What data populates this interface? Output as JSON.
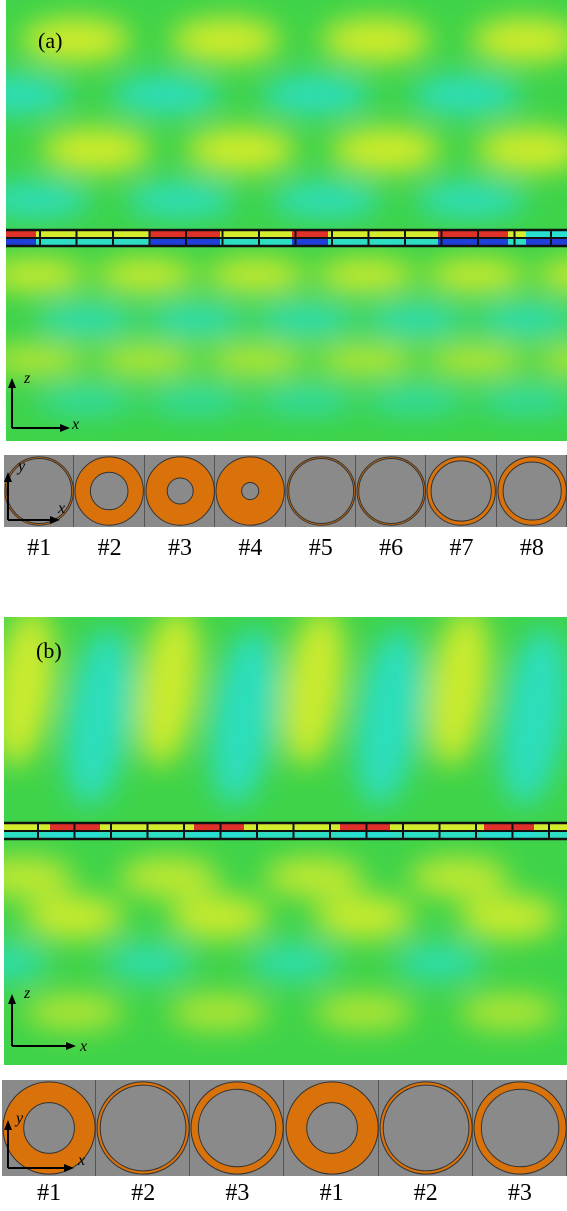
{
  "panels": [
    {
      "label": "(a)",
      "axes": {
        "vertical": "z",
        "horizontal": "x"
      },
      "strip_axes": {
        "vertical": "y",
        "horizontal": "x"
      },
      "cells": [
        {
          "label": "#1",
          "inner_ratio": 0.95
        },
        {
          "label": "#2",
          "inner_ratio": 0.55
        },
        {
          "label": "#3",
          "inner_ratio": 0.38
        },
        {
          "label": "#4",
          "inner_ratio": 0.25
        },
        {
          "label": "#5",
          "inner_ratio": 0.95
        },
        {
          "label": "#6",
          "inner_ratio": 0.95
        },
        {
          "label": "#7",
          "inner_ratio": 0.88
        },
        {
          "label": "#8",
          "inner_ratio": 0.85
        }
      ]
    },
    {
      "label": "(b)",
      "axes": {
        "vertical": "z",
        "horizontal": "x"
      },
      "strip_axes": {
        "vertical": "y",
        "horizontal": "x"
      },
      "cells": [
        {
          "label": "#1",
          "inner_ratio": 0.55
        },
        {
          "label": "#2",
          "inner_ratio": 0.93
        },
        {
          "label": "#3",
          "inner_ratio": 0.84
        },
        {
          "label": "#1",
          "inner_ratio": 0.55
        },
        {
          "label": "#2",
          "inner_ratio": 0.93
        },
        {
          "label": "#3",
          "inner_ratio": 0.84
        }
      ]
    }
  ],
  "colors": {
    "field_base": "#3fd34a",
    "field_high": "#e3ee2a",
    "field_low": "#2bdfd0",
    "hot": "#e0302a",
    "cold": "#1f3fd8",
    "ring": "#d9720a",
    "cell_bg": "#8a8a8a"
  }
}
